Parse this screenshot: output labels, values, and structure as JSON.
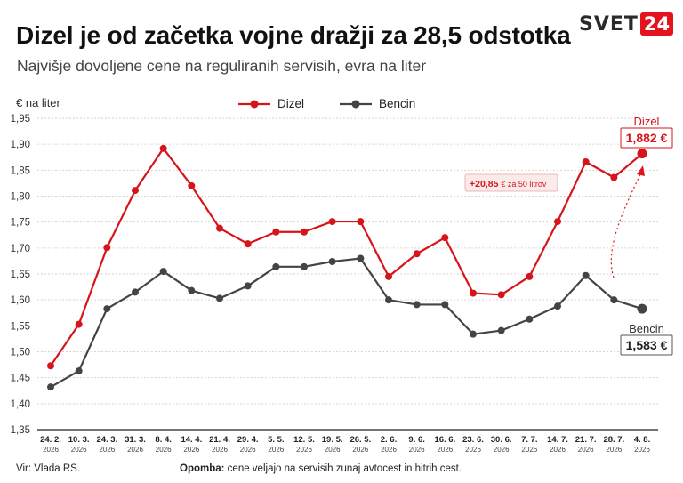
{
  "header": {
    "title": "Dizel je od začetka vojne dražji za 28,5 odstotka",
    "subtitle": "Najvišje dovoljene cene na reguliranih servisih, evra na liter"
  },
  "brand": {
    "logo_text": "SVET",
    "logo_number": "24",
    "accent": "#e3141d"
  },
  "footer": {
    "source": "Vir: Vlada RS.",
    "note_label": "Opomba:",
    "note_text": " cene veljajo na servisih zunaj avtocest in hitrih cest."
  },
  "chart_data": {
    "type": "line",
    "ylabel": "€ na liter",
    "ylim": [
      1.35,
      1.95
    ],
    "ytick_labels": [
      "1,35",
      "1,40",
      "1,45",
      "1,50",
      "1,55",
      "1,60",
      "1,65",
      "1,70",
      "1,75",
      "1,80",
      "1,85",
      "1,90",
      "1,95"
    ],
    "grid": true,
    "legend_position": "top-center",
    "categories": [
      [
        "24. 2.",
        "2026"
      ],
      [
        "10. 3.",
        "2026"
      ],
      [
        "24. 3.",
        "2026"
      ],
      [
        "31. 3.",
        "2026"
      ],
      [
        "8. 4.",
        "2026"
      ],
      [
        "14. 4.",
        "2026"
      ],
      [
        "21. 4.",
        "2026"
      ],
      [
        "29. 4.",
        "2026"
      ],
      [
        "5. 5.",
        "2026"
      ],
      [
        "12. 5.",
        "2026"
      ],
      [
        "19. 5.",
        "2026"
      ],
      [
        "26. 5.",
        "2026"
      ],
      [
        "2. 6.",
        "2026"
      ],
      [
        "9. 6.",
        "2026"
      ],
      [
        "16. 6.",
        "2026"
      ],
      [
        "23. 6.",
        "2026"
      ],
      [
        "30. 6.",
        "2026"
      ],
      [
        "7. 7.",
        "2026"
      ],
      [
        "14. 7.",
        "2026"
      ],
      [
        "21. 7.",
        "2026"
      ],
      [
        "28. 7.",
        "2026"
      ],
      [
        "4. 8.",
        "2026"
      ]
    ],
    "series": [
      {
        "name": "Dizel",
        "color": "#d7141a",
        "values": [
          1.473,
          1.553,
          1.701,
          1.811,
          1.892,
          1.82,
          1.738,
          1.708,
          1.731,
          1.731,
          1.751,
          1.751,
          1.645,
          1.689,
          1.72,
          1.613,
          1.61,
          1.645,
          1.751,
          1.866,
          1.836,
          1.882
        ]
      },
      {
        "name": "Bencin",
        "color": "#444444",
        "values": [
          1.432,
          1.463,
          1.583,
          1.615,
          1.655,
          1.618,
          1.603,
          1.627,
          1.664,
          1.664,
          1.674,
          1.68,
          1.6,
          1.591,
          1.591,
          1.534,
          1.541,
          1.563,
          1.588,
          1.647,
          1.6,
          1.583
        ]
      }
    ],
    "annotations": {
      "diesel_end": {
        "name": "Dizel",
        "value": "1,882 €"
      },
      "petrol_end": {
        "name": "Bencin",
        "value": "1,583 €"
      },
      "increase": {
        "amount": "+20,85",
        "unit": "€ za 50 litrov"
      }
    }
  }
}
